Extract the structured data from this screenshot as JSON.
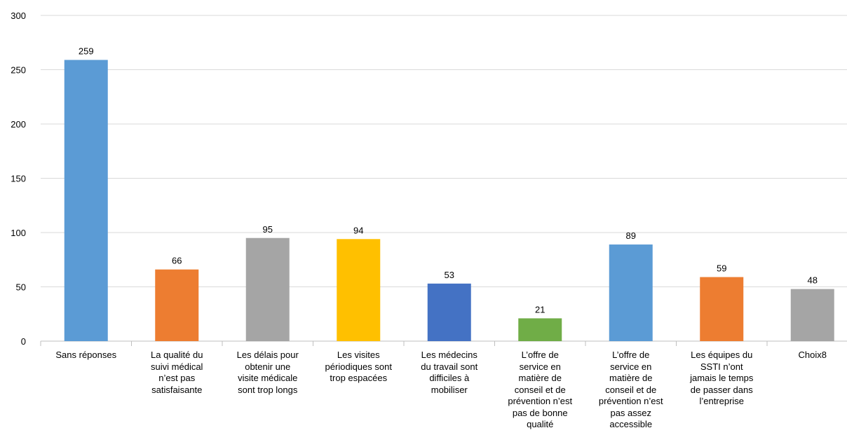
{
  "chart_data": {
    "type": "bar",
    "title": "",
    "xlabel": "",
    "ylabel": "",
    "ylim": [
      0,
      300
    ],
    "yticks": [
      0,
      50,
      100,
      150,
      200,
      250,
      300
    ],
    "grid": true,
    "legend": "none",
    "categories": [
      "Sans réponses",
      "La qualité du suivi médical n’est pas satisfaisante",
      "Les délais pour obtenir une visite médicale sont trop longs",
      "Les visites périodiques sont trop espacées",
      "Les médecins du travail sont difficiles à mobiliser",
      "L’offre de service en matière de conseil et de prévention n’est pas de bonne qualité",
      "L’offre de service en matière de conseil et de prévention n’est pas assez accessible",
      "Les équipes du SSTI n’ont jamais le temps de passer dans l’entreprise",
      "Choix8"
    ],
    "category_lines": [
      [
        "Sans réponses"
      ],
      [
        "La qualité du",
        "suivi médical",
        "n’est pas",
        "satisfaisante"
      ],
      [
        "Les délais pour",
        "obtenir une",
        "visite médicale",
        "sont trop longs"
      ],
      [
        "Les visites",
        "périodiques sont",
        "trop espacées"
      ],
      [
        "Les médecins",
        "du travail sont",
        "difficiles à",
        "mobiliser"
      ],
      [
        "L’offre de",
        "service en",
        "matière de",
        "conseil et de",
        "prévention n’est",
        "pas de bonne",
        "qualité"
      ],
      [
        "L’offre de",
        "service en",
        "matière de",
        "conseil et de",
        "prévention n’est",
        "pas assez",
        "accessible"
      ],
      [
        "Les équipes du",
        "SSTI n’ont",
        "jamais le temps",
        "de passer dans",
        "l’entreprise"
      ],
      [
        "Choix8"
      ]
    ],
    "values": [
      259,
      66,
      95,
      94,
      53,
      21,
      89,
      59,
      48
    ],
    "colors": [
      "#5B9BD5",
      "#ED7D31",
      "#A5A5A5",
      "#FFC000",
      "#4472C4",
      "#70AD47",
      "#5B9BD5",
      "#ED7D31",
      "#A5A5A5"
    ]
  }
}
